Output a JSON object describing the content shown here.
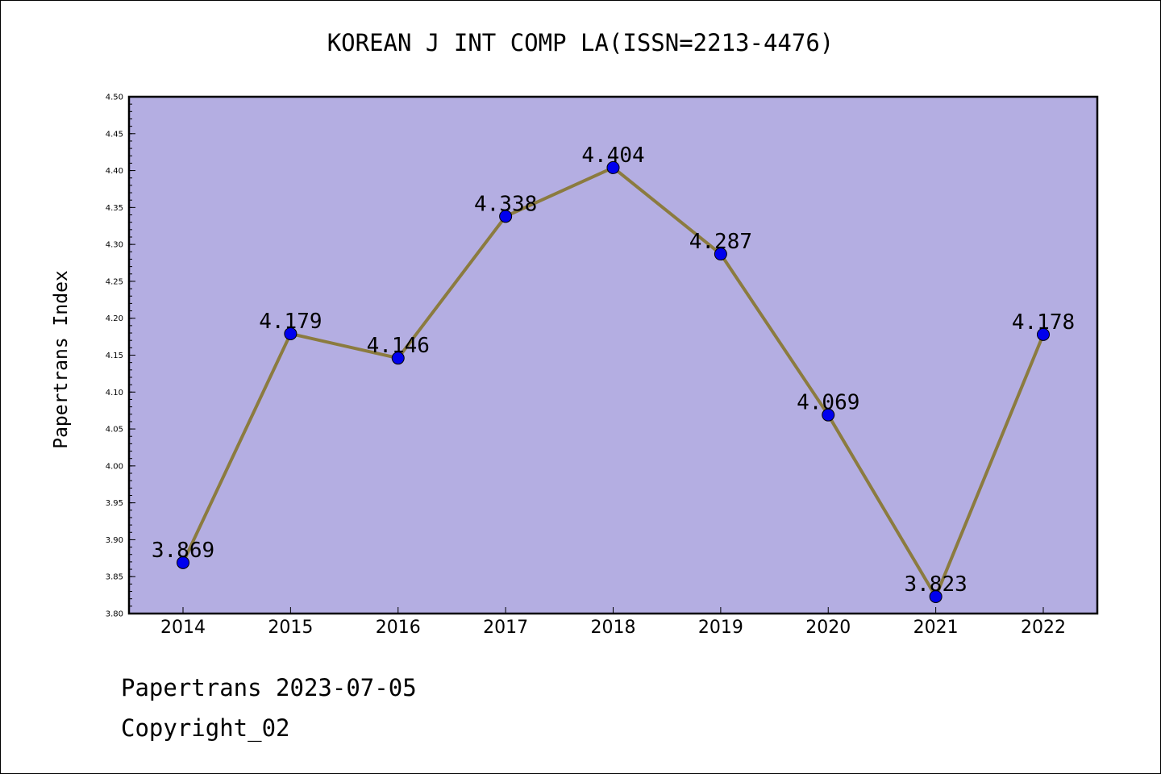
{
  "chart_data": {
    "type": "line",
    "title": "KOREAN J INT COMP LA(ISSN=2213-4476)",
    "xlabel": "",
    "ylabel": "Papertrans Index",
    "ylim": [
      3.8,
      4.5
    ],
    "y_ticks": [
      "3.80",
      "3.85",
      "3.90",
      "3.95",
      "4.00",
      "4.05",
      "4.10",
      "4.15",
      "4.20",
      "4.25",
      "4.30",
      "4.35",
      "4.40",
      "4.45",
      "4.50"
    ],
    "categories": [
      "2014",
      "2015",
      "2016",
      "2017",
      "2018",
      "2019",
      "2020",
      "2021",
      "2022"
    ],
    "series": [
      {
        "values": [
          3.869,
          4.179,
          4.146,
          4.338,
          4.404,
          4.287,
          4.069,
          3.823,
          4.178
        ],
        "labels": [
          "3.869",
          "4.179",
          "4.146",
          "4.338",
          "4.404",
          "4.287",
          "4.069",
          "3.823",
          "4.178"
        ]
      }
    ],
    "grid": false,
    "colors": {
      "plot_bg": "#b4aee2",
      "line": "#8b7b3f",
      "marker": "#0000ee"
    }
  },
  "footer": {
    "line1": "Papertrans 2023-07-05",
    "line2": "Copyright_02"
  }
}
